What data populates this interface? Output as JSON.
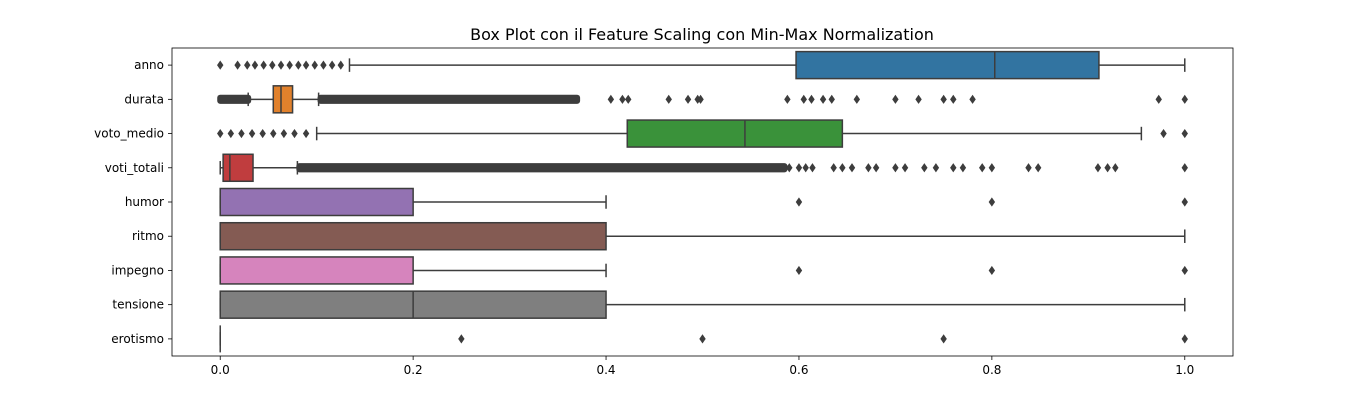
{
  "chart_data": {
    "type": "boxplot",
    "orientation": "horizontal",
    "title": "Box Plot con il Feature Scaling con Min-Max Normalization",
    "xlabel": "",
    "ylabel": "",
    "xlim": [
      -0.05,
      1.05
    ],
    "xticks": [
      0.0,
      0.2,
      0.4,
      0.6,
      0.8,
      1.0
    ],
    "xtick_labels": [
      "0.0",
      "0.2",
      "0.4",
      "0.6",
      "0.8",
      "1.0"
    ],
    "grid": false,
    "legend": "none",
    "outlier_marker": "diamond",
    "outlier_color": "#3d3d3d",
    "series": [
      {
        "name": "anno",
        "color": "#3274a1",
        "whisker_low": 0.134,
        "q1": 0.597,
        "median": 0.803,
        "q3": 0.911,
        "whisker_high": 1.0,
        "outliers": [
          0.0,
          0.018,
          0.028,
          0.036,
          0.045,
          0.054,
          0.063,
          0.072,
          0.081,
          0.089,
          0.098,
          0.107,
          0.116,
          0.125
        ],
        "outlier_ranges": []
      },
      {
        "name": "durata",
        "color": "#e1812c",
        "whisker_low": 0.029,
        "q1": 0.055,
        "median": 0.063,
        "q3": 0.075,
        "whisker_high": 0.102,
        "outliers": [
          0.405,
          0.417,
          0.423,
          0.465,
          0.485,
          0.495,
          0.498,
          0.588,
          0.605,
          0.613,
          0.625,
          0.634,
          0.66,
          0.7,
          0.724,
          0.75,
          0.76,
          0.78,
          0.973,
          1.0
        ],
        "outlier_ranges": [
          [
            0.0,
            0.029
          ],
          [
            0.104,
            0.37
          ]
        ]
      },
      {
        "name": "voto_medio",
        "color": "#3a923a",
        "whisker_low": 0.1,
        "q1": 0.422,
        "median": 0.544,
        "q3": 0.645,
        "whisker_high": 0.955,
        "outliers": [
          0.0,
          0.011,
          0.022,
          0.033,
          0.044,
          0.055,
          0.066,
          0.077,
          0.089,
          0.978,
          1.0
        ],
        "outlier_ranges": []
      },
      {
        "name": "voti_totali",
        "color": "#c03d3e",
        "whisker_low": 0.0,
        "q1": 0.003,
        "median": 0.01,
        "q3": 0.034,
        "whisker_high": 0.08,
        "outliers": [
          0.59,
          0.6,
          0.607,
          0.614,
          0.636,
          0.645,
          0.655,
          0.672,
          0.68,
          0.7,
          0.71,
          0.73,
          0.742,
          0.76,
          0.77,
          0.79,
          0.8,
          0.838,
          0.848,
          0.91,
          0.92,
          0.928,
          1.0
        ],
        "outlier_ranges": [
          [
            0.082,
            0.585
          ]
        ]
      },
      {
        "name": "humor",
        "color": "#9372b2",
        "whisker_low": 0.0,
        "q1": 0.0,
        "median": 0.0,
        "q3": 0.2,
        "whisker_high": 0.4,
        "outliers": [
          0.6,
          0.8,
          1.0
        ],
        "outlier_ranges": []
      },
      {
        "name": "ritmo",
        "color": "#845b53",
        "whisker_low": 0.0,
        "q1": 0.0,
        "median": 0.0,
        "q3": 0.4,
        "whisker_high": 1.0,
        "outliers": [],
        "outlier_ranges": []
      },
      {
        "name": "impegno",
        "color": "#d684bd",
        "whisker_low": 0.0,
        "q1": 0.0,
        "median": 0.0,
        "q3": 0.2,
        "whisker_high": 0.4,
        "outliers": [
          0.6,
          0.8,
          1.0
        ],
        "outlier_ranges": []
      },
      {
        "name": "tensione",
        "color": "#7f7f7f",
        "whisker_low": 0.0,
        "q1": 0.0,
        "median": 0.2,
        "q3": 0.4,
        "whisker_high": 1.0,
        "outliers": [],
        "outlier_ranges": []
      },
      {
        "name": "erotismo",
        "color": "#a9aa35",
        "whisker_low": 0.0,
        "q1": 0.0,
        "median": 0.0,
        "q3": 0.0,
        "whisker_high": 0.0,
        "outliers": [
          0.25,
          0.5,
          0.75,
          1.0
        ],
        "outlier_ranges": []
      }
    ]
  }
}
